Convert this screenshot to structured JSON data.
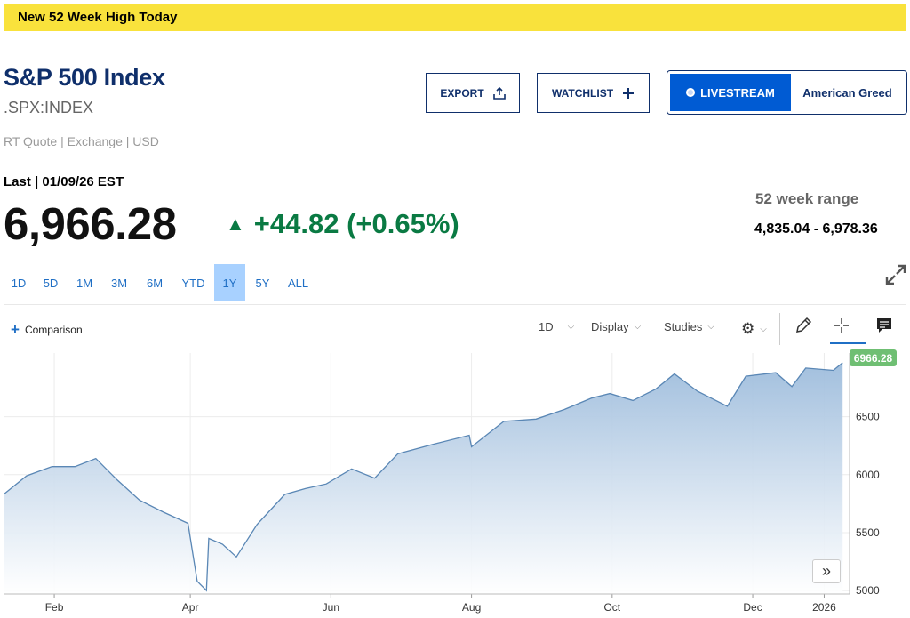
{
  "banner": {
    "text": "New 52 Week High Today"
  },
  "header": {
    "title": "S&P 500 Index",
    "symbol": ".SPX:INDEX",
    "meta": "RT Quote | Exchange | USD",
    "last_label": "Last | 01/09/26 EST",
    "price": "6,966.28",
    "change": "+44.82 (+0.65%)"
  },
  "actions": {
    "export_label": "EXPORT",
    "watchlist_label": "WATCHLIST",
    "livestream_label": "LIVESTREAM",
    "show_label": "American Greed"
  },
  "range": {
    "label": "52 week range",
    "value": "4,835.04 - 6,978.36"
  },
  "timeframes": [
    "1D",
    "5D",
    "1M",
    "3M",
    "6M",
    "YTD",
    "1Y",
    "5Y",
    "ALL"
  ],
  "active_timeframe": "1Y",
  "toolbar": {
    "comparison": "Comparison",
    "interval": "1D",
    "display": "Display",
    "studies": "Studies"
  },
  "colors": {
    "accent": "#1f6fc5",
    "up": "#0a7a43",
    "navy": "#0f2f6b",
    "banner": "#f9e23c",
    "line": "#5a87b5",
    "pill": "#6fbf73"
  },
  "chart_data": {
    "type": "area",
    "x_ticks": [
      "Feb",
      "Apr",
      "Jun",
      "Aug",
      "Oct",
      "Dec",
      "2026"
    ],
    "y_ticks": [
      5000,
      5500,
      6000,
      6500
    ],
    "ylim": [
      4970,
      7050
    ],
    "last_value_label": "6966.28",
    "x": [
      "2025-01-10",
      "2025-01-20",
      "2025-01-31",
      "2025-02-10",
      "2025-02-19",
      "2025-02-28",
      "2025-03-10",
      "2025-03-20",
      "2025-03-31",
      "2025-04-04",
      "2025-04-08",
      "2025-04-09",
      "2025-04-15",
      "2025-04-21",
      "2025-04-30",
      "2025-05-12",
      "2025-05-21",
      "2025-05-30",
      "2025-06-10",
      "2025-06-20",
      "2025-06-30",
      "2025-07-15",
      "2025-07-31",
      "2025-08-01",
      "2025-08-15",
      "2025-08-29",
      "2025-09-10",
      "2025-09-22",
      "2025-09-30",
      "2025-10-10",
      "2025-10-20",
      "2025-10-28",
      "2025-11-07",
      "2025-11-20",
      "2025-11-28",
      "2025-12-11",
      "2025-12-18",
      "2025-12-24",
      "2026-01-05",
      "2026-01-09"
    ],
    "values": [
      5830,
      5990,
      6070,
      6070,
      6140,
      5960,
      5780,
      5680,
      5580,
      5080,
      5000,
      5450,
      5400,
      5290,
      5570,
      5830,
      5880,
      5920,
      6050,
      5970,
      6180,
      6260,
      6340,
      6240,
      6460,
      6480,
      6560,
      6660,
      6700,
      6640,
      6740,
      6870,
      6720,
      6590,
      6850,
      6880,
      6760,
      6920,
      6900,
      6966.28
    ]
  }
}
